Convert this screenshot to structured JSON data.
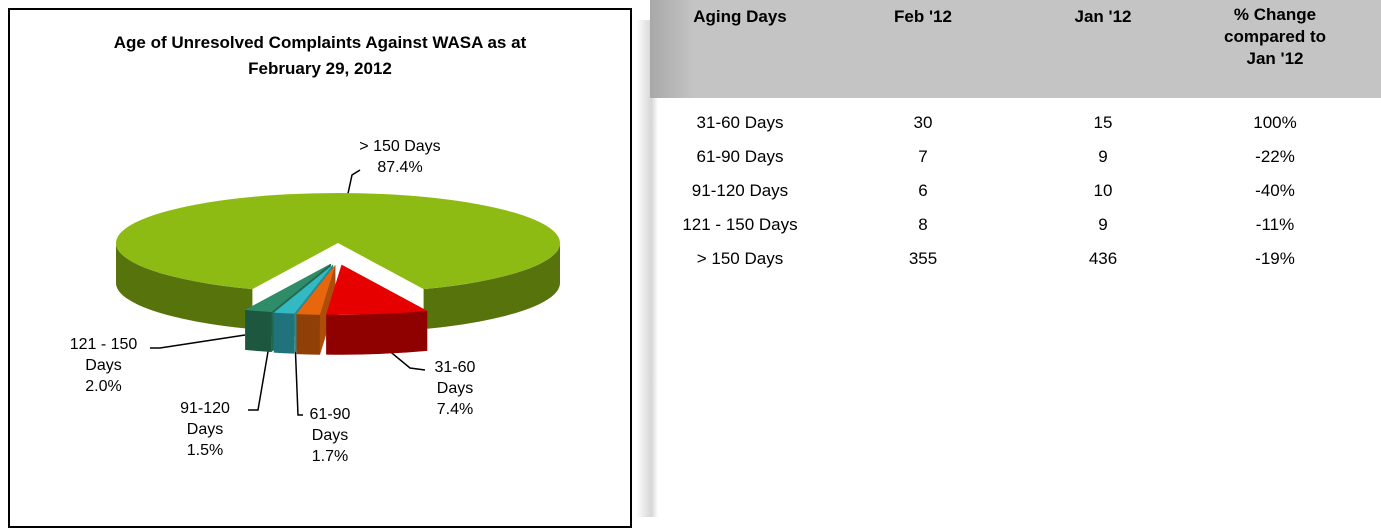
{
  "chart_data": {
    "type": "pie3d",
    "title": "Age of Unresolved Complaints Against WASA as at February 29, 2012",
    "categories": [
      "31-60 Days",
      "61-90 Days",
      "91-120 Days",
      "121 - 150 Days",
      "> 150 Days"
    ],
    "values": [
      7.4,
      1.7,
      1.5,
      2.0,
      87.4
    ],
    "value_labels": [
      "7.4%",
      "1.7%",
      "1.5%",
      "2.0%",
      "87.4%"
    ],
    "colors": [
      "#e60000",
      "#e8660c",
      "#33b9c4",
      "#2f8c68",
      "#8dbb14"
    ]
  },
  "table": {
    "header": [
      "Aging Days",
      "Feb '12",
      "Jan '12",
      "% Change compared to Jan '12"
    ],
    "rows": [
      [
        "31-60 Days",
        30,
        15,
        "100%"
      ],
      [
        "61-90 Days",
        7,
        9,
        "-22%"
      ],
      [
        "91-120 Days",
        6,
        10,
        "-40%"
      ],
      [
        "121 - 150 Days",
        8,
        9,
        "-11%"
      ],
      [
        "> 150 Days",
        355,
        436,
        "-19%"
      ]
    ]
  }
}
